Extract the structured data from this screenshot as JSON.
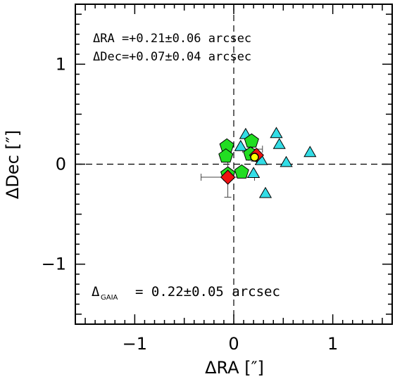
{
  "chart_data": {
    "type": "scatter",
    "title": "",
    "xlabel": "ΔRA [″]",
    "ylabel": "ΔDec [″]",
    "xlim": [
      -1.6,
      1.6
    ],
    "ylim": [
      -1.6,
      1.6
    ],
    "x_ticks": [
      "−1",
      "0",
      "1"
    ],
    "y_ticks": [
      "−1",
      "0",
      "1"
    ],
    "grid": false,
    "reference_lines": {
      "x": 0,
      "y": 0,
      "style": "dashed"
    },
    "annotations": {
      "dra": "ΔRA =+0.21±0.06 arcsec",
      "ddec": "ΔDec=+0.07±0.04 arcsec",
      "gaia_delta": "Δ",
      "gaia_sub": "GAIA",
      "gaia_value": "= 0.22±0.05 arcsec"
    },
    "series": [
      {
        "marker": "triangle",
        "color": "#33dde6",
        "points": [
          [
            0.12,
            0.3
          ],
          [
            0.43,
            0.31
          ],
          [
            0.46,
            0.2
          ],
          [
            0.77,
            0.12
          ],
          [
            0.07,
            0.18
          ],
          [
            0.53,
            0.02
          ],
          [
            0.28,
            0.04
          ],
          [
            0.2,
            -0.09
          ],
          [
            0.32,
            -0.29
          ]
        ]
      },
      {
        "marker": "pentagon",
        "color": "#22dd22",
        "points": [
          [
            -0.07,
            0.18
          ],
          [
            0.18,
            0.23
          ],
          [
            -0.08,
            0.08
          ],
          [
            0.17,
            0.1
          ],
          [
            0.08,
            -0.08
          ],
          [
            -0.06,
            -0.1
          ]
        ],
        "errors": [
          {
            "x": 0.19,
            "xerr": 0.1,
            "yerr": 0.09
          }
        ]
      },
      {
        "marker": "diamond",
        "color": "#ee1111",
        "points": [
          [
            0.23,
            0.09
          ],
          [
            -0.06,
            -0.13
          ]
        ],
        "errors": [
          {
            "x": -0.06,
            "y": -0.13,
            "xerr": 0.27,
            "yerr": 0.2
          }
        ]
      },
      {
        "marker": "circle",
        "color": "#ffff00",
        "points": [
          [
            0.21,
            0.07
          ]
        ],
        "errors": [
          {
            "x": 0.21,
            "y": 0.07,
            "xerr": 0.06,
            "yerr": 0.04
          }
        ]
      }
    ]
  }
}
